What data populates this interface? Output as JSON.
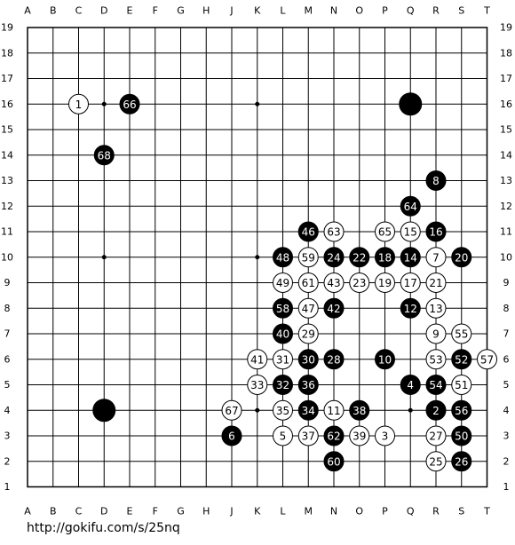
{
  "board": {
    "columns": [
      "A",
      "B",
      "C",
      "D",
      "E",
      "F",
      "G",
      "H",
      "J",
      "K",
      "L",
      "M",
      "N",
      "O",
      "P",
      "Q",
      "R",
      "S",
      "T"
    ],
    "rows": [
      19,
      18,
      17,
      16,
      15,
      14,
      13,
      12,
      11,
      10,
      9,
      8,
      7,
      6,
      5,
      4,
      3,
      2,
      1
    ],
    "stones": [
      {
        "col": "C",
        "row": 16,
        "color": "white",
        "label": "1"
      },
      {
        "col": "E",
        "row": 16,
        "color": "black",
        "label": "66"
      },
      {
        "col": "Q",
        "row": 16,
        "color": "black"
      },
      {
        "col": "D",
        "row": 14,
        "color": "black",
        "label": "68"
      },
      {
        "col": "R",
        "row": 13,
        "color": "black",
        "label": "8"
      },
      {
        "col": "Q",
        "row": 12,
        "color": "black",
        "label": "64"
      },
      {
        "col": "M",
        "row": 11,
        "color": "black",
        "label": "46"
      },
      {
        "col": "N",
        "row": 11,
        "color": "white",
        "label": "63"
      },
      {
        "col": "P",
        "row": 11,
        "color": "white",
        "label": "65"
      },
      {
        "col": "Q",
        "row": 11,
        "color": "white",
        "label": "15"
      },
      {
        "col": "R",
        "row": 11,
        "color": "black",
        "label": "16"
      },
      {
        "col": "L",
        "row": 10,
        "color": "black",
        "label": "48"
      },
      {
        "col": "M",
        "row": 10,
        "color": "white",
        "label": "59"
      },
      {
        "col": "N",
        "row": 10,
        "color": "black",
        "label": "24"
      },
      {
        "col": "O",
        "row": 10,
        "color": "black",
        "label": "22"
      },
      {
        "col": "P",
        "row": 10,
        "color": "black",
        "label": "18"
      },
      {
        "col": "Q",
        "row": 10,
        "color": "black",
        "label": "14"
      },
      {
        "col": "R",
        "row": 10,
        "color": "white",
        "label": "7"
      },
      {
        "col": "S",
        "row": 10,
        "color": "black",
        "label": "20"
      },
      {
        "col": "L",
        "row": 9,
        "color": "white",
        "label": "49"
      },
      {
        "col": "M",
        "row": 9,
        "color": "white",
        "label": "61"
      },
      {
        "col": "N",
        "row": 9,
        "color": "white",
        "label": "43"
      },
      {
        "col": "O",
        "row": 9,
        "color": "white",
        "label": "23"
      },
      {
        "col": "P",
        "row": 9,
        "color": "white",
        "label": "19"
      },
      {
        "col": "Q",
        "row": 9,
        "color": "white",
        "label": "17"
      },
      {
        "col": "R",
        "row": 9,
        "color": "white",
        "label": "21"
      },
      {
        "col": "L",
        "row": 8,
        "color": "black",
        "label": "58"
      },
      {
        "col": "M",
        "row": 8,
        "color": "white",
        "label": "47"
      },
      {
        "col": "N",
        "row": 8,
        "color": "black",
        "label": "42"
      },
      {
        "col": "Q",
        "row": 8,
        "color": "black",
        "label": "12"
      },
      {
        "col": "R",
        "row": 8,
        "color": "white",
        "label": "13"
      },
      {
        "col": "L",
        "row": 7,
        "color": "black",
        "label": "40"
      },
      {
        "col": "M",
        "row": 7,
        "color": "white",
        "label": "29"
      },
      {
        "col": "R",
        "row": 7,
        "color": "white",
        "label": "9"
      },
      {
        "col": "S",
        "row": 7,
        "color": "white",
        "label": "55"
      },
      {
        "col": "K",
        "row": 6,
        "color": "white",
        "label": "41"
      },
      {
        "col": "L",
        "row": 6,
        "color": "white",
        "label": "31"
      },
      {
        "col": "M",
        "row": 6,
        "color": "black",
        "label": "30"
      },
      {
        "col": "N",
        "row": 6,
        "color": "black",
        "label": "28"
      },
      {
        "col": "P",
        "row": 6,
        "color": "black",
        "label": "10"
      },
      {
        "col": "R",
        "row": 6,
        "color": "white",
        "label": "53"
      },
      {
        "col": "S",
        "row": 6,
        "color": "black",
        "label": "52"
      },
      {
        "col": "T",
        "row": 6,
        "color": "white",
        "label": "57"
      },
      {
        "col": "K",
        "row": 5,
        "color": "white",
        "label": "33"
      },
      {
        "col": "L",
        "row": 5,
        "color": "black",
        "label": "32"
      },
      {
        "col": "M",
        "row": 5,
        "color": "black",
        "label": "36"
      },
      {
        "col": "Q",
        "row": 5,
        "color": "black",
        "label": "4"
      },
      {
        "col": "R",
        "row": 5,
        "color": "black",
        "label": "54"
      },
      {
        "col": "S",
        "row": 5,
        "color": "white",
        "label": "51"
      },
      {
        "col": "D",
        "row": 4,
        "color": "black"
      },
      {
        "col": "J",
        "row": 4,
        "color": "white",
        "label": "67"
      },
      {
        "col": "L",
        "row": 4,
        "color": "white",
        "label": "35"
      },
      {
        "col": "M",
        "row": 4,
        "color": "black",
        "label": "34"
      },
      {
        "col": "N",
        "row": 4,
        "color": "white",
        "label": "11"
      },
      {
        "col": "O",
        "row": 4,
        "color": "black",
        "label": "38"
      },
      {
        "col": "R",
        "row": 4,
        "color": "black",
        "label": "2"
      },
      {
        "col": "S",
        "row": 4,
        "color": "black",
        "label": "56"
      },
      {
        "col": "J",
        "row": 3,
        "color": "black",
        "label": "6"
      },
      {
        "col": "L",
        "row": 3,
        "color": "white",
        "label": "5"
      },
      {
        "col": "M",
        "row": 3,
        "color": "white",
        "label": "37"
      },
      {
        "col": "N",
        "row": 3,
        "color": "black",
        "label": "62"
      },
      {
        "col": "O",
        "row": 3,
        "color": "white",
        "label": "39"
      },
      {
        "col": "P",
        "row": 3,
        "color": "white",
        "label": "3"
      },
      {
        "col": "R",
        "row": 3,
        "color": "white",
        "label": "27"
      },
      {
        "col": "S",
        "row": 3,
        "color": "black",
        "label": "50"
      },
      {
        "col": "N",
        "row": 2,
        "color": "black",
        "label": "60"
      },
      {
        "col": "R",
        "row": 2,
        "color": "white",
        "label": "25"
      },
      {
        "col": "S",
        "row": 2,
        "color": "black",
        "label": "26"
      }
    ]
  },
  "url": "http://gokifu.com/s/25nq"
}
